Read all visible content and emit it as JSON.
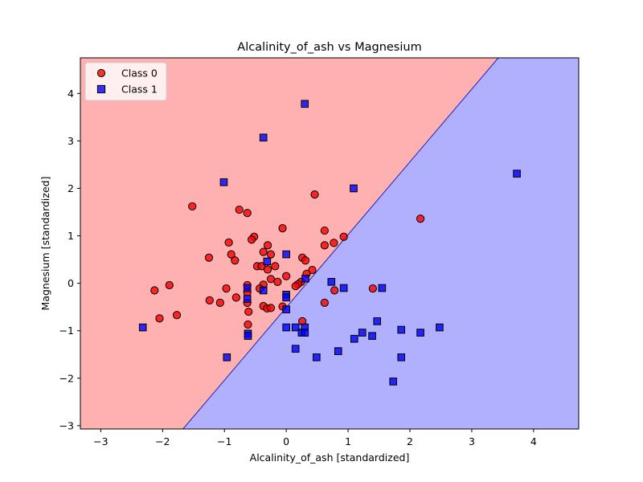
{
  "chart_data": {
    "type": "scatter",
    "title": "Alcalinity_of_ash vs Magnesium",
    "xlabel": "Alcalinity_of_ash [standardized]",
    "ylabel": "Magnesium [standardized]",
    "xlim": [
      -3.33,
      4.73
    ],
    "ylim": [
      -3.07,
      4.75
    ],
    "xticks": [
      -3,
      -2,
      -1,
      0,
      1,
      2,
      3,
      4
    ],
    "yticks": [
      -3,
      -2,
      -1,
      0,
      1,
      2,
      3,
      4
    ],
    "grid": false,
    "legend_position": "upper-left",
    "decision_boundary": {
      "type": "linear",
      "points": [
        [
          -1.67,
          -3.07
        ],
        [
          3.43,
          4.75
        ]
      ],
      "upper_left_region_color": "#ffb0b0",
      "lower_right_region_color": "#b0b0ff",
      "line_color": "#2020c0"
    },
    "series": [
      {
        "name": "Class 0",
        "marker": "circle",
        "color": "#ff0000",
        "edge_color": "#000000",
        "points": [
          [
            -1.52,
            1.62
          ],
          [
            -0.76,
            1.55
          ],
          [
            -0.63,
            1.48
          ],
          [
            0.46,
            1.87
          ],
          [
            2.17,
            1.36
          ],
          [
            -0.52,
            0.98
          ],
          [
            -0.56,
            0.92
          ],
          [
            -0.06,
            1.16
          ],
          [
            0.62,
            1.11
          ],
          [
            0.93,
            0.98
          ],
          [
            0.77,
            0.85
          ],
          [
            -0.93,
            0.86
          ],
          [
            0.62,
            0.8
          ],
          [
            -0.3,
            0.8
          ],
          [
            -0.37,
            0.66
          ],
          [
            -0.25,
            0.61
          ],
          [
            -0.89,
            0.61
          ],
          [
            -0.83,
            0.48
          ],
          [
            -1.25,
            0.54
          ],
          [
            0.26,
            0.54
          ],
          [
            0.31,
            0.48
          ],
          [
            -0.47,
            0.36
          ],
          [
            -0.4,
            0.36
          ],
          [
            -0.18,
            0.36
          ],
          [
            -0.3,
            0.29
          ],
          [
            0.42,
            0.28
          ],
          [
            0.33,
            0.2
          ],
          [
            0.0,
            0.15
          ],
          [
            -0.25,
            0.09
          ],
          [
            -0.14,
            0.03
          ],
          [
            0.24,
            0.03
          ],
          [
            0.19,
            -0.02
          ],
          [
            0.15,
            -0.06
          ],
          [
            -0.37,
            -0.03
          ],
          [
            -0.63,
            -0.04
          ],
          [
            -1.89,
            -0.04
          ],
          [
            -2.13,
            -0.15
          ],
          [
            -0.97,
            -0.11
          ],
          [
            -0.43,
            -0.11
          ],
          [
            -0.63,
            -0.19
          ],
          [
            0.78,
            -0.15
          ],
          [
            1.4,
            -0.11
          ],
          [
            -0.81,
            -0.3
          ],
          [
            -1.24,
            -0.36
          ],
          [
            -1.07,
            -0.41
          ],
          [
            -0.63,
            -0.41
          ],
          [
            -0.37,
            -0.48
          ],
          [
            -0.31,
            -0.53
          ],
          [
            -0.25,
            -0.52
          ],
          [
            -0.06,
            -0.49
          ],
          [
            0.62,
            -0.41
          ],
          [
            -0.61,
            -0.6
          ],
          [
            -1.77,
            -0.67
          ],
          [
            -2.05,
            -0.74
          ],
          [
            0.26,
            -0.8
          ],
          [
            -0.62,
            -0.87
          ]
        ]
      },
      {
        "name": "Class 1",
        "marker": "square",
        "color": "#0000ff",
        "edge_color": "#000000",
        "points": [
          [
            0.3,
            3.78
          ],
          [
            -0.37,
            3.07
          ],
          [
            3.73,
            2.31
          ],
          [
            -1.01,
            2.13
          ],
          [
            1.09,
            2.0
          ],
          [
            0.0,
            0.61
          ],
          [
            -0.31,
            0.46
          ],
          [
            -0.37,
            -0.15
          ],
          [
            0.31,
            0.1
          ],
          [
            0.73,
            0.03
          ],
          [
            0.93,
            -0.1
          ],
          [
            1.55,
            -0.1
          ],
          [
            -0.63,
            -0.1
          ],
          [
            0.0,
            -0.24
          ],
          [
            0.0,
            -0.3
          ],
          [
            -0.63,
            -0.33
          ],
          [
            0.0,
            -0.55
          ],
          [
            0.0,
            -0.93
          ],
          [
            0.15,
            -0.93
          ],
          [
            0.3,
            -0.93
          ],
          [
            0.25,
            -1.04
          ],
          [
            0.3,
            -1.04
          ],
          [
            1.47,
            -0.8
          ],
          [
            1.86,
            -0.98
          ],
          [
            2.48,
            -0.93
          ],
          [
            1.23,
            -1.04
          ],
          [
            1.39,
            -1.11
          ],
          [
            1.1,
            -1.17
          ],
          [
            2.17,
            -1.04
          ],
          [
            -0.62,
            -1.06
          ],
          [
            -0.62,
            -1.11
          ],
          [
            0.15,
            -1.38
          ],
          [
            0.84,
            -1.43
          ],
          [
            -0.96,
            -1.56
          ],
          [
            0.49,
            -1.56
          ],
          [
            1.86,
            -1.56
          ],
          [
            1.73,
            -2.07
          ],
          [
            -2.32,
            -0.93
          ]
        ]
      }
    ]
  }
}
